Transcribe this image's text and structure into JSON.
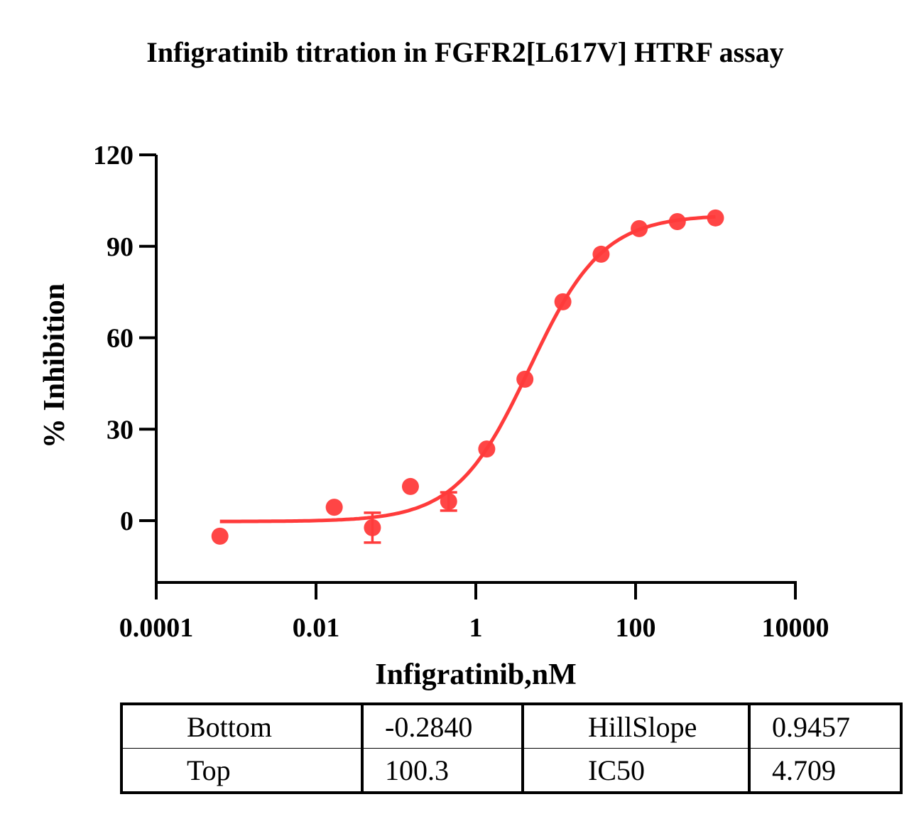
{
  "chart_data": {
    "type": "scatter",
    "title": "Infigratinib titration in FGFR2[L617V] HTRF assay",
    "xlabel": "Infigratinib,nM",
    "ylabel": "% Inhibition",
    "xscale": "log",
    "xlim": [
      0.0001,
      10000
    ],
    "ylim": [
      -20,
      120
    ],
    "xticks": [
      0.0001,
      0.01,
      1,
      100,
      10000
    ],
    "xtick_labels": [
      "0.0001",
      "0.01",
      "1",
      "100",
      "10000"
    ],
    "yticks": [
      0,
      30,
      60,
      90,
      120
    ],
    "ytick_labels": [
      "0",
      "30",
      "60",
      "90",
      "120"
    ],
    "color": "#ff3b3b",
    "series": [
      {
        "name": "Infigratinib",
        "x": [
          0.000627,
          0.0169,
          0.0508,
          0.152,
          0.457,
          1.37,
          4.12,
          12.3,
          37.0,
          111,
          333,
          1000
        ],
        "y": [
          -5.1,
          4.4,
          -2.3,
          11.2,
          6.3,
          23.5,
          46.4,
          71.8,
          87.4,
          95.8,
          98.1,
          99.3
        ],
        "yerr": [
          0,
          0,
          4.9,
          0,
          3.0,
          0,
          0,
          0,
          0,
          0,
          0,
          0
        ]
      }
    ],
    "fit": {
      "model": "four-parameter logistic",
      "bottom": -0.284,
      "top": 100.3,
      "hillslope": 0.9457,
      "ic50": 4.709
    },
    "params_table": [
      [
        "Bottom",
        "-0.2840",
        "HillSlope",
        "0.9457"
      ],
      [
        "Top",
        "100.3",
        "IC50",
        "4.709"
      ]
    ]
  }
}
